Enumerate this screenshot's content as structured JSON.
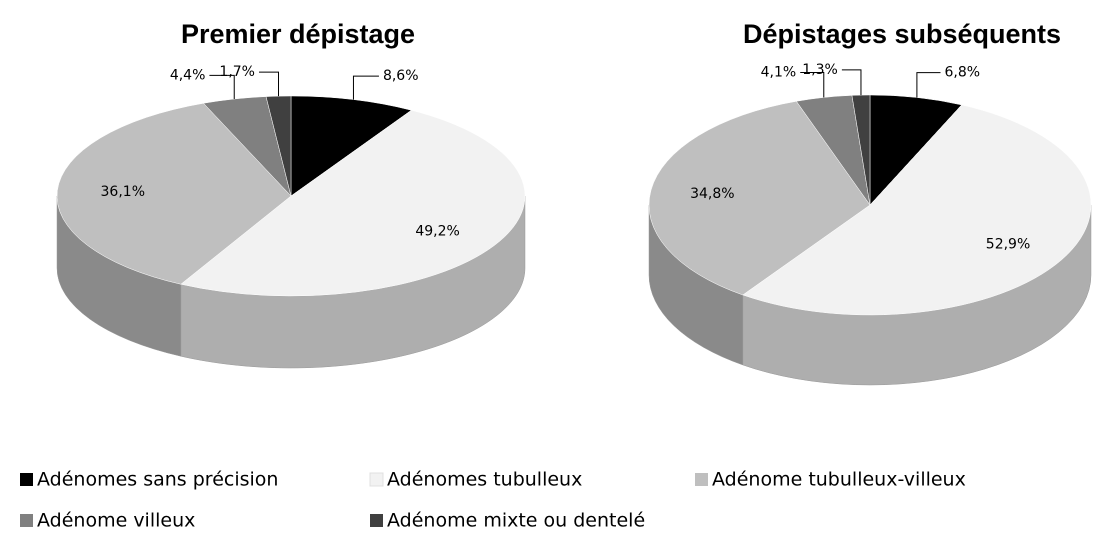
{
  "chart_data": [
    {
      "type": "pie",
      "title": "Premier dépistage",
      "categories": [
        "Adénomes sans précision",
        "Adénomes tubulleux",
        "Adénome tubulleux-villeux",
        "Adénome villeux",
        "Adénome mixte ou dentelé"
      ],
      "colors": [
        "#000000",
        "#f2f2f2",
        "#bfbfbf",
        "#808080",
        "#404040"
      ],
      "values": [
        8.6,
        49.2,
        36.1,
        4.4,
        1.7
      ],
      "value_labels": [
        "8,6%",
        "49,2%",
        "36,1%",
        "4,4%",
        "1,7%"
      ]
    },
    {
      "type": "pie",
      "title": "Dépistages subséquents",
      "values": [
        6.8,
        52.9,
        34.8,
        4.1,
        1.3
      ],
      "value_labels": [
        "6,8%",
        "52,9%",
        "34,8%",
        "4,1%",
        "1,3%"
      ]
    }
  ]
}
